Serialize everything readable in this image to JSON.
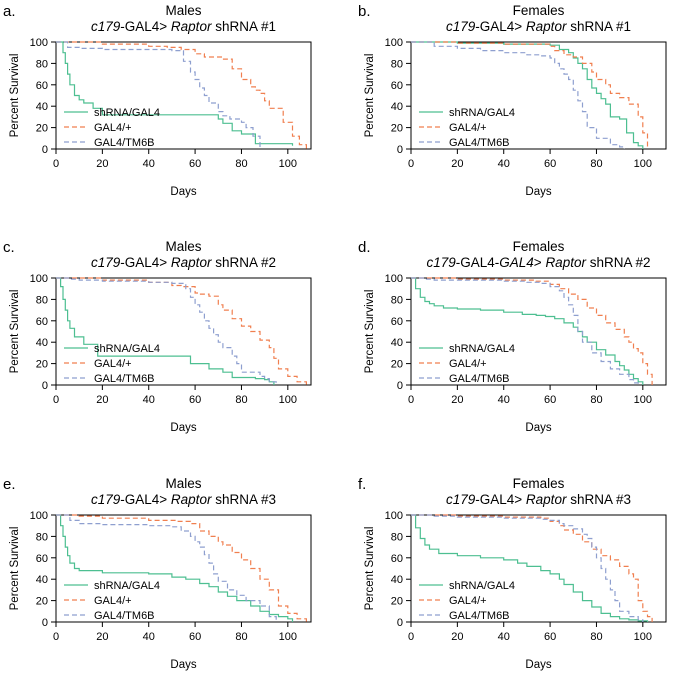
{
  "colors": {
    "shRNA/GAL4": "#4dbf91",
    "GAL4/+": "#f07f4f",
    "GAL4/TM6B": "#8e9fcf"
  },
  "chart_data": [
    {
      "panel": "a.",
      "type": "line",
      "title_line1": "Males",
      "title_parts": [
        {
          "text": "c179",
          "italic": true
        },
        {
          "text": "-GAL4> ",
          "italic": false
        },
        {
          "text": "Raptor",
          "italic": true
        },
        {
          "text": " shRNA #1",
          "italic": false
        }
      ],
      "xlabel": "Days",
      "ylabel": "Percent Survival",
      "xlim": [
        0,
        110
      ],
      "ylim": [
        0,
        100
      ],
      "xticks": [
        0,
        20,
        40,
        60,
        80,
        100
      ],
      "yticks": [
        0,
        20,
        40,
        60,
        80,
        100
      ],
      "series": [
        {
          "name": "shRNA/GAL4",
          "style": "solid",
          "x": [
            0,
            3,
            4,
            5,
            6,
            8,
            10,
            12,
            16,
            20,
            70,
            72,
            76,
            80,
            86,
            100,
            102
          ],
          "y": [
            100,
            90,
            80,
            70,
            60,
            50,
            46,
            43,
            38,
            32,
            28,
            24,
            17,
            14,
            5,
            5,
            3
          ]
        },
        {
          "name": "GAL4/+",
          "style": "dashed",
          "x": [
            0,
            20,
            40,
            48,
            54,
            60,
            64,
            72,
            76,
            80,
            84,
            86,
            88,
            90,
            92,
            98,
            102,
            105,
            108
          ],
          "y": [
            100,
            98,
            96,
            95,
            93,
            89,
            86,
            84,
            75,
            65,
            58,
            55,
            52,
            45,
            38,
            25,
            12,
            4,
            0
          ]
        },
        {
          "name": "GAL4/TM6B",
          "style": "dashed",
          "x": [
            0,
            5,
            10,
            20,
            40,
            50,
            55,
            58,
            60,
            62,
            64,
            66,
            70,
            72,
            75,
            80,
            82,
            85,
            88
          ],
          "y": [
            100,
            95,
            94,
            93,
            93,
            92,
            82,
            72,
            65,
            57,
            50,
            43,
            35,
            31,
            28,
            25,
            20,
            12,
            0
          ]
        }
      ]
    },
    {
      "panel": "b.",
      "type": "line",
      "title_line1": "Females",
      "title_parts": [
        {
          "text": "c179",
          "italic": true
        },
        {
          "text": "-GAL4> ",
          "italic": false
        },
        {
          "text": "Raptor",
          "italic": true
        },
        {
          "text": " shRNA #1",
          "italic": false
        }
      ],
      "xlabel": "Days",
      "ylabel": "Percent Survival",
      "xlim": [
        0,
        110
      ],
      "ylim": [
        0,
        100
      ],
      "xticks": [
        0,
        20,
        40,
        60,
        80,
        100
      ],
      "yticks": [
        0,
        20,
        40,
        60,
        80,
        100
      ],
      "series": [
        {
          "name": "shRNA/GAL4",
          "style": "solid",
          "x": [
            0,
            20,
            40,
            60,
            64,
            68,
            70,
            72,
            74,
            76,
            78,
            80,
            82,
            84,
            86,
            90,
            93,
            96,
            98,
            100
          ],
          "y": [
            100,
            99,
            98,
            97,
            93,
            90,
            85,
            80,
            75,
            65,
            57,
            52,
            47,
            42,
            30,
            28,
            15,
            6,
            3,
            0
          ]
        },
        {
          "name": "GAL4/+",
          "style": "dashed",
          "x": [
            0,
            20,
            40,
            60,
            62,
            66,
            70,
            74,
            78,
            80,
            84,
            86,
            90,
            94,
            98,
            100,
            102
          ],
          "y": [
            100,
            99,
            98,
            96,
            92,
            88,
            86,
            80,
            72,
            65,
            60,
            52,
            48,
            42,
            30,
            15,
            0
          ]
        },
        {
          "name": "GAL4/TM6B",
          "style": "dashed",
          "x": [
            0,
            10,
            20,
            30,
            40,
            50,
            56,
            60,
            62,
            64,
            66,
            68,
            70,
            72,
            74,
            76,
            80,
            86,
            90,
            92
          ],
          "y": [
            100,
            96,
            94,
            92,
            90,
            88,
            87,
            85,
            80,
            75,
            70,
            65,
            55,
            45,
            35,
            20,
            10,
            4,
            2,
            0
          ]
        }
      ]
    },
    {
      "panel": "c.",
      "type": "line",
      "title_line1": "Males",
      "title_parts": [
        {
          "text": "c179",
          "italic": true
        },
        {
          "text": "-GAL4> ",
          "italic": false
        },
        {
          "text": "Raptor",
          "italic": true
        },
        {
          "text": " shRNA #2",
          "italic": false
        }
      ],
      "xlabel": "Days",
      "ylabel": "Percent Survival",
      "xlim": [
        0,
        110
      ],
      "ylim": [
        0,
        100
      ],
      "xticks": [
        0,
        20,
        40,
        60,
        80,
        100
      ],
      "yticks": [
        0,
        20,
        40,
        60,
        80,
        100
      ],
      "series": [
        {
          "name": "shRNA/GAL4",
          "style": "solid",
          "x": [
            0,
            2,
            3,
            4,
            5,
            6,
            8,
            12,
            18,
            58,
            66,
            72,
            76,
            86,
            90,
            92,
            94
          ],
          "y": [
            100,
            92,
            80,
            70,
            60,
            53,
            45,
            38,
            27,
            20,
            15,
            12,
            7,
            6,
            5,
            3,
            0
          ]
        },
        {
          "name": "GAL4/+",
          "style": "dashed",
          "x": [
            0,
            20,
            40,
            50,
            54,
            60,
            62,
            66,
            70,
            72,
            76,
            80,
            84,
            88,
            92,
            94,
            96,
            100,
            104,
            108
          ],
          "y": [
            100,
            98,
            96,
            93,
            92,
            86,
            85,
            83,
            75,
            70,
            62,
            55,
            50,
            42,
            35,
            25,
            15,
            8,
            3,
            0
          ]
        },
        {
          "name": "GAL4/TM6B",
          "style": "dashed",
          "x": [
            0,
            6,
            10,
            20,
            40,
            50,
            56,
            58,
            60,
            62,
            64,
            66,
            68,
            70,
            72,
            76,
            78,
            80,
            88,
            90,
            92,
            95
          ],
          "y": [
            100,
            99,
            98,
            97,
            96,
            95,
            90,
            82,
            75,
            68,
            60,
            53,
            47,
            40,
            35,
            27,
            20,
            12,
            8,
            6,
            3,
            0
          ]
        }
      ]
    },
    {
      "panel": "d.",
      "type": "line",
      "title_line1": "Females",
      "title_parts": [
        {
          "text": "c179",
          "italic": true
        },
        {
          "text": "-GAL4-",
          "italic": false
        },
        {
          "text": "GAL4",
          "italic": true
        },
        {
          "text": "> ",
          "italic": false
        },
        {
          "text": "Raptor",
          "italic": true
        },
        {
          "text": " shRNA #2",
          "italic": false
        }
      ],
      "xlabel": "Days",
      "ylabel": "Percent Survival",
      "xlim": [
        0,
        110
      ],
      "ylim": [
        0,
        100
      ],
      "xticks": [
        0,
        20,
        40,
        60,
        80,
        100
      ],
      "yticks": [
        0,
        20,
        40,
        60,
        80,
        100
      ],
      "series": [
        {
          "name": "shRNA/GAL4",
          "style": "solid",
          "x": [
            0,
            2,
            4,
            6,
            8,
            10,
            14,
            20,
            30,
            40,
            48,
            54,
            58,
            62,
            66,
            70,
            72,
            74,
            76,
            80,
            84,
            88,
            90,
            92,
            94,
            96,
            98,
            100
          ],
          "y": [
            100,
            90,
            82,
            78,
            76,
            74,
            72,
            71,
            70,
            68,
            66,
            65,
            64,
            62,
            58,
            54,
            50,
            45,
            40,
            33,
            28,
            22,
            18,
            14,
            10,
            6,
            3,
            0
          ]
        },
        {
          "name": "GAL4/+",
          "style": "dashed",
          "x": [
            0,
            20,
            40,
            54,
            60,
            64,
            68,
            72,
            76,
            80,
            84,
            88,
            92,
            94,
            96,
            98,
            100,
            102,
            104
          ],
          "y": [
            100,
            99,
            98,
            97,
            94,
            90,
            85,
            80,
            72,
            65,
            58,
            52,
            45,
            40,
            34,
            30,
            20,
            10,
            0
          ]
        },
        {
          "name": "GAL4/TM6B",
          "style": "dashed",
          "x": [
            0,
            6,
            10,
            20,
            40,
            50,
            56,
            60,
            64,
            66,
            68,
            70,
            72,
            74,
            78,
            82,
            86,
            90,
            94,
            96,
            98
          ],
          "y": [
            100,
            99,
            98,
            98,
            97,
            96,
            95,
            92,
            88,
            82,
            75,
            65,
            50,
            40,
            30,
            22,
            15,
            10,
            5,
            2,
            0
          ]
        }
      ]
    },
    {
      "panel": "e.",
      "type": "line",
      "title_line1": "Males",
      "title_parts": [
        {
          "text": "c179",
          "italic": true
        },
        {
          "text": "-GAL4> ",
          "italic": false
        },
        {
          "text": "Raptor",
          "italic": true
        },
        {
          "text": " shRNA #3",
          "italic": false
        }
      ],
      "xlabel": "Days",
      "ylabel": "Percent Survival",
      "xlim": [
        0,
        110
      ],
      "ylim": [
        0,
        100
      ],
      "xticks": [
        0,
        20,
        40,
        60,
        80,
        100
      ],
      "yticks": [
        0,
        20,
        40,
        60,
        80,
        100
      ],
      "series": [
        {
          "name": "shRNA/GAL4",
          "style": "solid",
          "x": [
            0,
            2,
            3,
            4,
            5,
            6,
            8,
            10,
            20,
            40,
            50,
            56,
            62,
            66,
            70,
            74,
            78,
            84,
            88,
            92,
            96,
            100,
            102
          ],
          "y": [
            100,
            90,
            80,
            70,
            62,
            55,
            50,
            48,
            46,
            45,
            42,
            40,
            36,
            33,
            28,
            24,
            20,
            15,
            10,
            7,
            5,
            3,
            0
          ]
        },
        {
          "name": "GAL4/+",
          "style": "dashed",
          "x": [
            0,
            10,
            20,
            40,
            52,
            58,
            62,
            66,
            70,
            72,
            76,
            80,
            84,
            88,
            92,
            96,
            100,
            104,
            108
          ],
          "y": [
            100,
            99,
            97,
            95,
            94,
            92,
            85,
            80,
            75,
            72,
            65,
            58,
            50,
            40,
            30,
            15,
            8,
            3,
            0
          ]
        },
        {
          "name": "GAL4/TM6B",
          "style": "dashed",
          "x": [
            0,
            6,
            10,
            20,
            40,
            50,
            54,
            58,
            60,
            62,
            64,
            66,
            68,
            70,
            74,
            78,
            82,
            88,
            92,
            95
          ],
          "y": [
            100,
            95,
            92,
            91,
            90,
            89,
            85,
            80,
            75,
            70,
            63,
            55,
            45,
            38,
            30,
            25,
            20,
            15,
            5,
            0
          ]
        }
      ]
    },
    {
      "panel": "f.",
      "type": "line",
      "title_line1": "Females",
      "title_parts": [
        {
          "text": "c179",
          "italic": true
        },
        {
          "text": "-GAL4> ",
          "italic": false
        },
        {
          "text": "Raptor",
          "italic": true
        },
        {
          "text": " shRNA #3",
          "italic": false
        }
      ],
      "xlabel": "Days",
      "ylabel": "Percent Survival",
      "xlim": [
        0,
        110
      ],
      "ylim": [
        0,
        100
      ],
      "xticks": [
        0,
        20,
        40,
        60,
        80,
        100
      ],
      "yticks": [
        0,
        20,
        40,
        60,
        80,
        100
      ],
      "series": [
        {
          "name": "shRNA/GAL4",
          "style": "solid",
          "x": [
            0,
            2,
            4,
            6,
            8,
            12,
            20,
            30,
            40,
            46,
            50,
            56,
            60,
            64,
            66,
            70,
            74,
            78,
            82,
            86,
            90,
            94,
            98,
            102
          ],
          "y": [
            100,
            88,
            78,
            72,
            68,
            64,
            62,
            60,
            58,
            55,
            52,
            48,
            45,
            40,
            35,
            28,
            20,
            14,
            8,
            5,
            3,
            2,
            1,
            0
          ]
        },
        {
          "name": "GAL4/+",
          "style": "dashed",
          "x": [
            0,
            20,
            40,
            56,
            60,
            64,
            66,
            70,
            74,
            78,
            82,
            86,
            90,
            94,
            96,
            98,
            100,
            102,
            104
          ],
          "y": [
            100,
            99,
            98,
            97,
            94,
            90,
            86,
            82,
            75,
            68,
            62,
            58,
            52,
            45,
            40,
            20,
            10,
            5,
            0
          ]
        },
        {
          "name": "GAL4/TM6B",
          "style": "dashed",
          "x": [
            0,
            10,
            20,
            40,
            56,
            60,
            64,
            66,
            70,
            74,
            76,
            78,
            80,
            82,
            84,
            86,
            88,
            90,
            94,
            98,
            100
          ],
          "y": [
            100,
            99,
            98,
            97,
            96,
            95,
            92,
            90,
            87,
            82,
            78,
            70,
            60,
            50,
            40,
            30,
            20,
            10,
            5,
            2,
            0
          ]
        }
      ]
    }
  ]
}
